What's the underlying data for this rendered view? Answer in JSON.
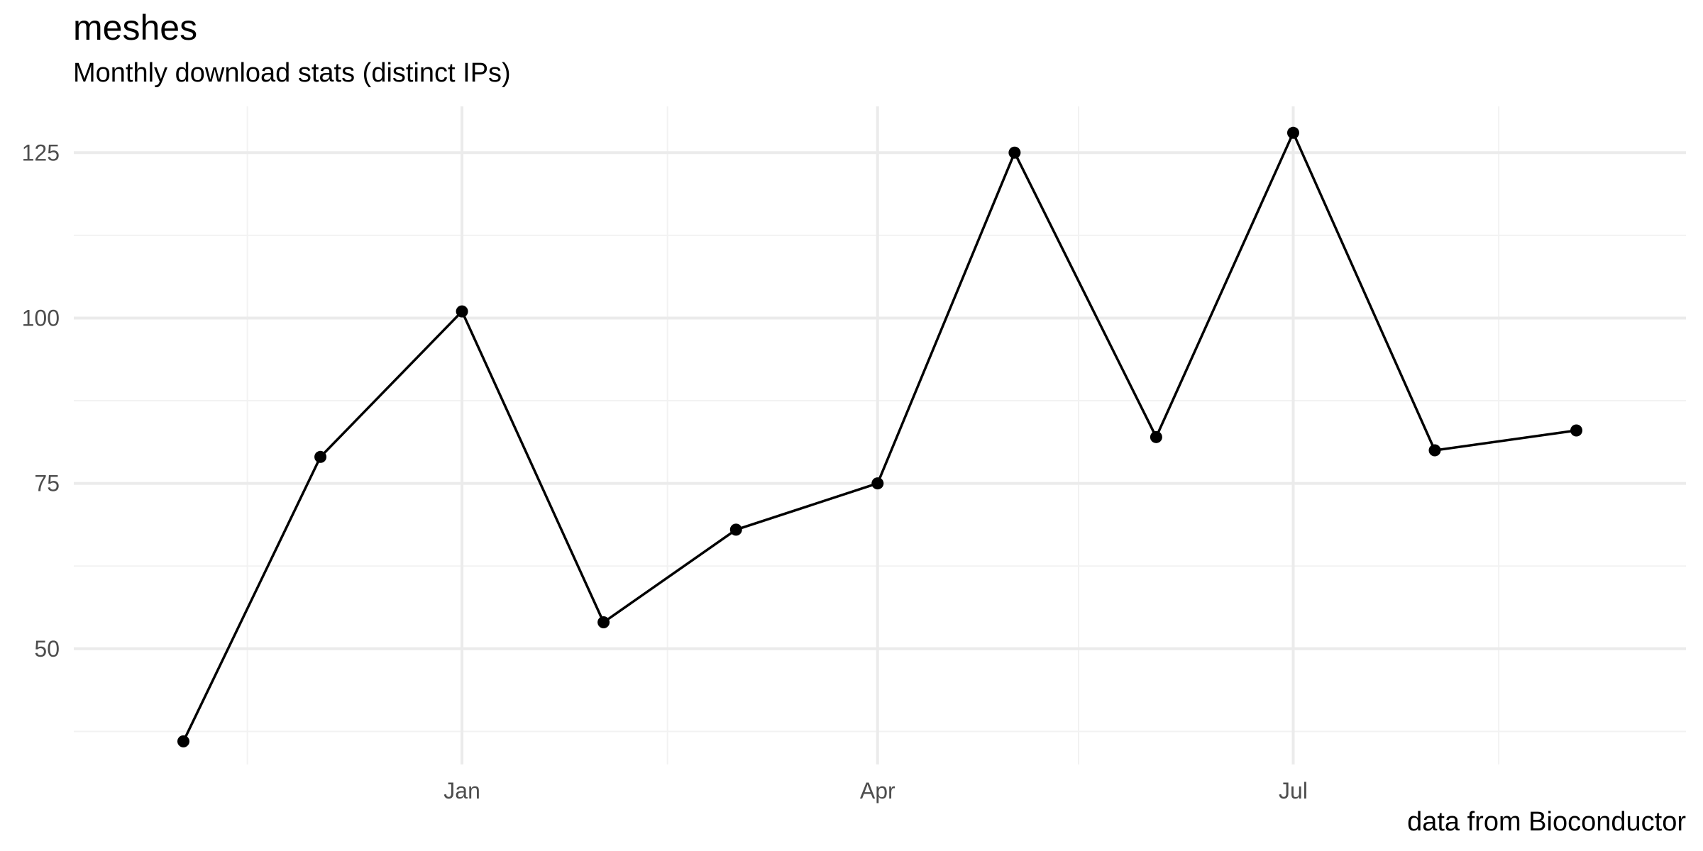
{
  "chart_data": {
    "type": "line",
    "title": "meshes",
    "subtitle": "Monthly download stats (distinct IPs)",
    "caption": "data from Bioconductor",
    "xlabel": "",
    "ylabel": "",
    "x": [
      "2023-11-01",
      "2023-12-01",
      "2024-01-01",
      "2024-02-01",
      "2024-03-01",
      "2024-04-01",
      "2024-05-01",
      "2024-06-01",
      "2024-07-01",
      "2024-08-01",
      "2024-09-01"
    ],
    "series": [
      {
        "values": [
          36,
          79,
          101,
          54,
          68,
          75,
          125,
          82,
          128,
          80,
          83
        ]
      }
    ],
    "x_tick_labels": [
      {
        "date": "2024-01-01",
        "label": "Jan"
      },
      {
        "date": "2024-04-01",
        "label": "Apr"
      },
      {
        "date": "2024-07-01",
        "label": "Jul"
      }
    ],
    "x_minor_breaks": [
      "2023-11-15",
      "2024-02-15",
      "2024-05-15",
      "2024-08-15"
    ],
    "x_range": [
      "2023-10-08",
      "2024-09-25"
    ],
    "y_ticks": [
      50,
      75,
      100,
      125
    ],
    "y_minor_breaks": [
      37.5,
      62.5,
      87.5,
      112.5
    ],
    "ylim": [
      32.5,
      132
    ],
    "grid": true,
    "legend": "none",
    "colors": {
      "line": "#000000",
      "point": "#000000",
      "grid_major": "#ebebeb",
      "grid_minor": "#f2f2f2",
      "tick_text": "#4d4d4d"
    }
  }
}
